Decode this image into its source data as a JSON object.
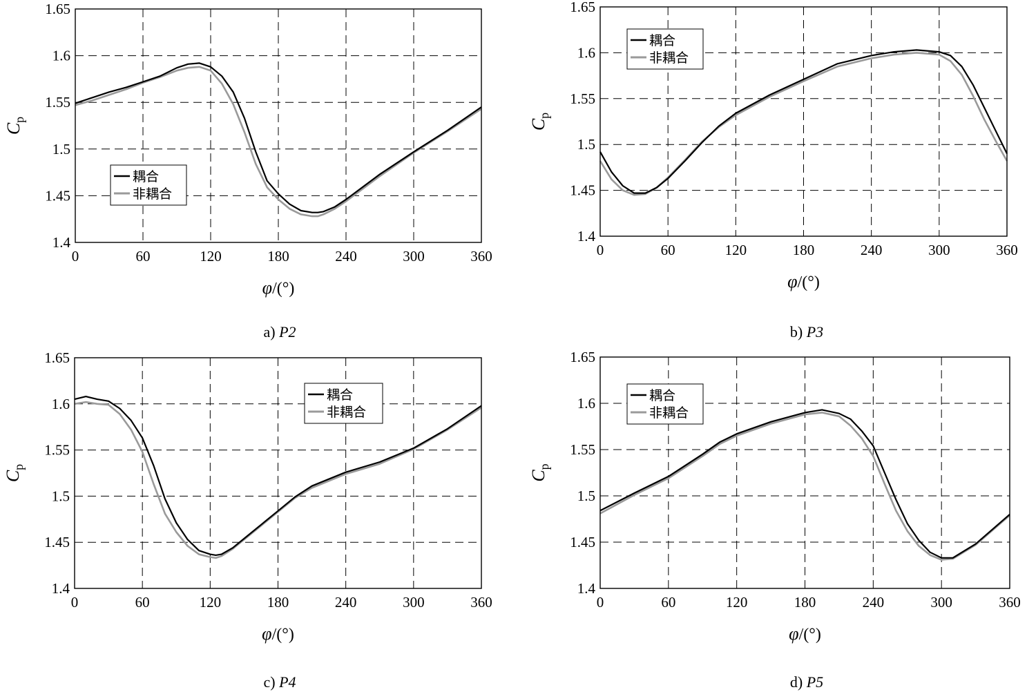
{
  "colors": {
    "coupled": "#000000",
    "uncoupled": "#9a9a9a"
  },
  "chart_data": [
    {
      "type": "line",
      "caption_prefix": "a) ",
      "caption_italic": "P2",
      "ylabel_main": "C",
      "ylabel_sub": "p",
      "xlabel_sym": "φ",
      "xlabel_unit": "/(°)",
      "xlim": [
        0,
        360
      ],
      "ylim": [
        1.4,
        1.65
      ],
      "xticks": [
        "0",
        "60",
        "120",
        "180",
        "240",
        "300",
        "360"
      ],
      "yticks": [
        "1.4",
        "1.45",
        "1.5",
        "1.55",
        "1.6",
        "1.65"
      ],
      "grid": true,
      "legend_position": "lower-left",
      "series": [
        {
          "name": "耦合",
          "x": [
            0,
            15,
            30,
            45,
            60,
            75,
            90,
            100,
            110,
            120,
            130,
            140,
            150,
            160,
            170,
            180,
            190,
            200,
            210,
            215,
            220,
            230,
            240,
            270,
            300,
            330,
            360
          ],
          "y": [
            1.549,
            1.555,
            1.561,
            1.566,
            1.572,
            1.578,
            1.587,
            1.591,
            1.592,
            1.588,
            1.578,
            1.561,
            1.533,
            1.497,
            1.466,
            1.452,
            1.441,
            1.434,
            1.432,
            1.432,
            1.433,
            1.438,
            1.446,
            1.473,
            1.497,
            1.52,
            1.545
          ]
        },
        {
          "name": "非耦合",
          "x": [
            0,
            15,
            30,
            45,
            60,
            75,
            90,
            100,
            110,
            120,
            130,
            140,
            150,
            160,
            170,
            180,
            190,
            200,
            210,
            215,
            220,
            230,
            240,
            270,
            300,
            330,
            360
          ],
          "y": [
            1.547,
            1.552,
            1.558,
            1.564,
            1.571,
            1.577,
            1.584,
            1.587,
            1.588,
            1.584,
            1.57,
            1.548,
            1.518,
            1.484,
            1.459,
            1.446,
            1.436,
            1.43,
            1.428,
            1.428,
            1.43,
            1.436,
            1.444,
            1.471,
            1.496,
            1.519,
            1.543
          ]
        }
      ]
    },
    {
      "type": "line",
      "caption_prefix": "b) ",
      "caption_italic": "P3",
      "ylabel_main": "C",
      "ylabel_sub": "p",
      "xlabel_sym": "φ",
      "xlabel_unit": "/(°)",
      "xlim": [
        0,
        360
      ],
      "ylim": [
        1.4,
        1.65
      ],
      "xticks": [
        "0",
        "60",
        "120",
        "180",
        "240",
        "300",
        "360"
      ],
      "yticks": [
        "1.4",
        "1.45",
        "1.5",
        "1.55",
        "1.6",
        "1.65"
      ],
      "grid": true,
      "legend_position": "top-left",
      "series": [
        {
          "name": "耦合",
          "x": [
            0,
            10,
            20,
            30,
            40,
            50,
            60,
            75,
            90,
            105,
            120,
            150,
            180,
            210,
            240,
            260,
            280,
            300,
            310,
            320,
            330,
            340,
            350,
            360
          ],
          "y": [
            1.492,
            1.47,
            1.455,
            1.447,
            1.447,
            1.453,
            1.463,
            1.482,
            1.502,
            1.52,
            1.534,
            1.554,
            1.571,
            1.588,
            1.597,
            1.601,
            1.603,
            1.601,
            1.597,
            1.585,
            1.565,
            1.54,
            1.515,
            1.49
          ]
        },
        {
          "name": "非耦合",
          "x": [
            0,
            10,
            20,
            30,
            40,
            50,
            60,
            75,
            90,
            105,
            120,
            150,
            180,
            210,
            240,
            260,
            280,
            300,
            310,
            320,
            330,
            340,
            350,
            360
          ],
          "y": [
            1.482,
            1.462,
            1.45,
            1.445,
            1.446,
            1.453,
            1.464,
            1.483,
            1.503,
            1.519,
            1.532,
            1.552,
            1.569,
            1.585,
            1.594,
            1.598,
            1.6,
            1.598,
            1.591,
            1.576,
            1.553,
            1.527,
            1.504,
            1.482
          ]
        }
      ]
    },
    {
      "type": "line",
      "caption_prefix": "c) ",
      "caption_italic": "P4",
      "ylabel_main": "C",
      "ylabel_sub": "p",
      "xlabel_sym": "φ",
      "xlabel_unit": "/(°)",
      "xlim": [
        0,
        360
      ],
      "ylim": [
        1.4,
        1.65
      ],
      "xticks": [
        "0",
        "60",
        "120",
        "180",
        "240",
        "300",
        "360"
      ],
      "yticks": [
        "1.4",
        "1.45",
        "1.5",
        "1.55",
        "1.6",
        "1.65"
      ],
      "grid": true,
      "legend_position": "top-right",
      "series": [
        {
          "name": "耦合",
          "x": [
            0,
            10,
            20,
            30,
            40,
            50,
            60,
            70,
            80,
            90,
            100,
            110,
            120,
            125,
            130,
            140,
            150,
            165,
            180,
            195,
            210,
            240,
            270,
            300,
            330,
            360
          ],
          "y": [
            1.605,
            1.608,
            1.605,
            1.603,
            1.595,
            1.582,
            1.563,
            1.533,
            1.497,
            1.471,
            1.453,
            1.441,
            1.437,
            1.436,
            1.437,
            1.444,
            1.454,
            1.469,
            1.484,
            1.499,
            1.511,
            1.526,
            1.537,
            1.552,
            1.573,
            1.598
          ]
        },
        {
          "name": "非耦合",
          "x": [
            0,
            10,
            20,
            30,
            40,
            50,
            60,
            70,
            80,
            90,
            100,
            110,
            120,
            125,
            130,
            140,
            150,
            165,
            180,
            195,
            210,
            240,
            270,
            300,
            330,
            360
          ],
          "y": [
            1.6,
            1.602,
            1.6,
            1.599,
            1.589,
            1.572,
            1.548,
            1.513,
            1.481,
            1.461,
            1.446,
            1.437,
            1.434,
            1.433,
            1.435,
            1.443,
            1.453,
            1.468,
            1.483,
            1.498,
            1.509,
            1.524,
            1.535,
            1.551,
            1.572,
            1.596
          ]
        }
      ]
    },
    {
      "type": "line",
      "caption_prefix": "d) ",
      "caption_italic": "P5",
      "ylabel_main": "C",
      "ylabel_sub": "p",
      "xlabel_sym": "φ",
      "xlabel_unit": "/(°)",
      "xlim": [
        0,
        360
      ],
      "ylim": [
        1.4,
        1.65
      ],
      "xticks": [
        "0",
        "60",
        "120",
        "180",
        "240",
        "300",
        "360"
      ],
      "yticks": [
        "1.4",
        "1.45",
        "1.5",
        "1.55",
        "1.6",
        "1.65"
      ],
      "grid": true,
      "legend_position": "top-left",
      "series": [
        {
          "name": "耦合",
          "x": [
            0,
            30,
            60,
            90,
            105,
            120,
            150,
            180,
            195,
            210,
            220,
            230,
            240,
            250,
            260,
            270,
            280,
            290,
            300,
            310,
            330,
            360
          ],
          "y": [
            1.484,
            1.503,
            1.521,
            1.545,
            1.558,
            1.567,
            1.58,
            1.59,
            1.593,
            1.589,
            1.583,
            1.57,
            1.554,
            1.525,
            1.496,
            1.47,
            1.452,
            1.439,
            1.433,
            1.433,
            1.448,
            1.48
          ]
        },
        {
          "name": "非耦合",
          "x": [
            0,
            30,
            60,
            90,
            105,
            120,
            150,
            180,
            195,
            210,
            220,
            230,
            240,
            250,
            260,
            270,
            280,
            290,
            300,
            310,
            330,
            360
          ],
          "y": [
            1.481,
            1.501,
            1.519,
            1.543,
            1.556,
            1.565,
            1.578,
            1.588,
            1.59,
            1.586,
            1.576,
            1.562,
            1.543,
            1.513,
            1.484,
            1.462,
            1.446,
            1.436,
            1.431,
            1.432,
            1.447,
            1.479
          ]
        }
      ]
    }
  ]
}
